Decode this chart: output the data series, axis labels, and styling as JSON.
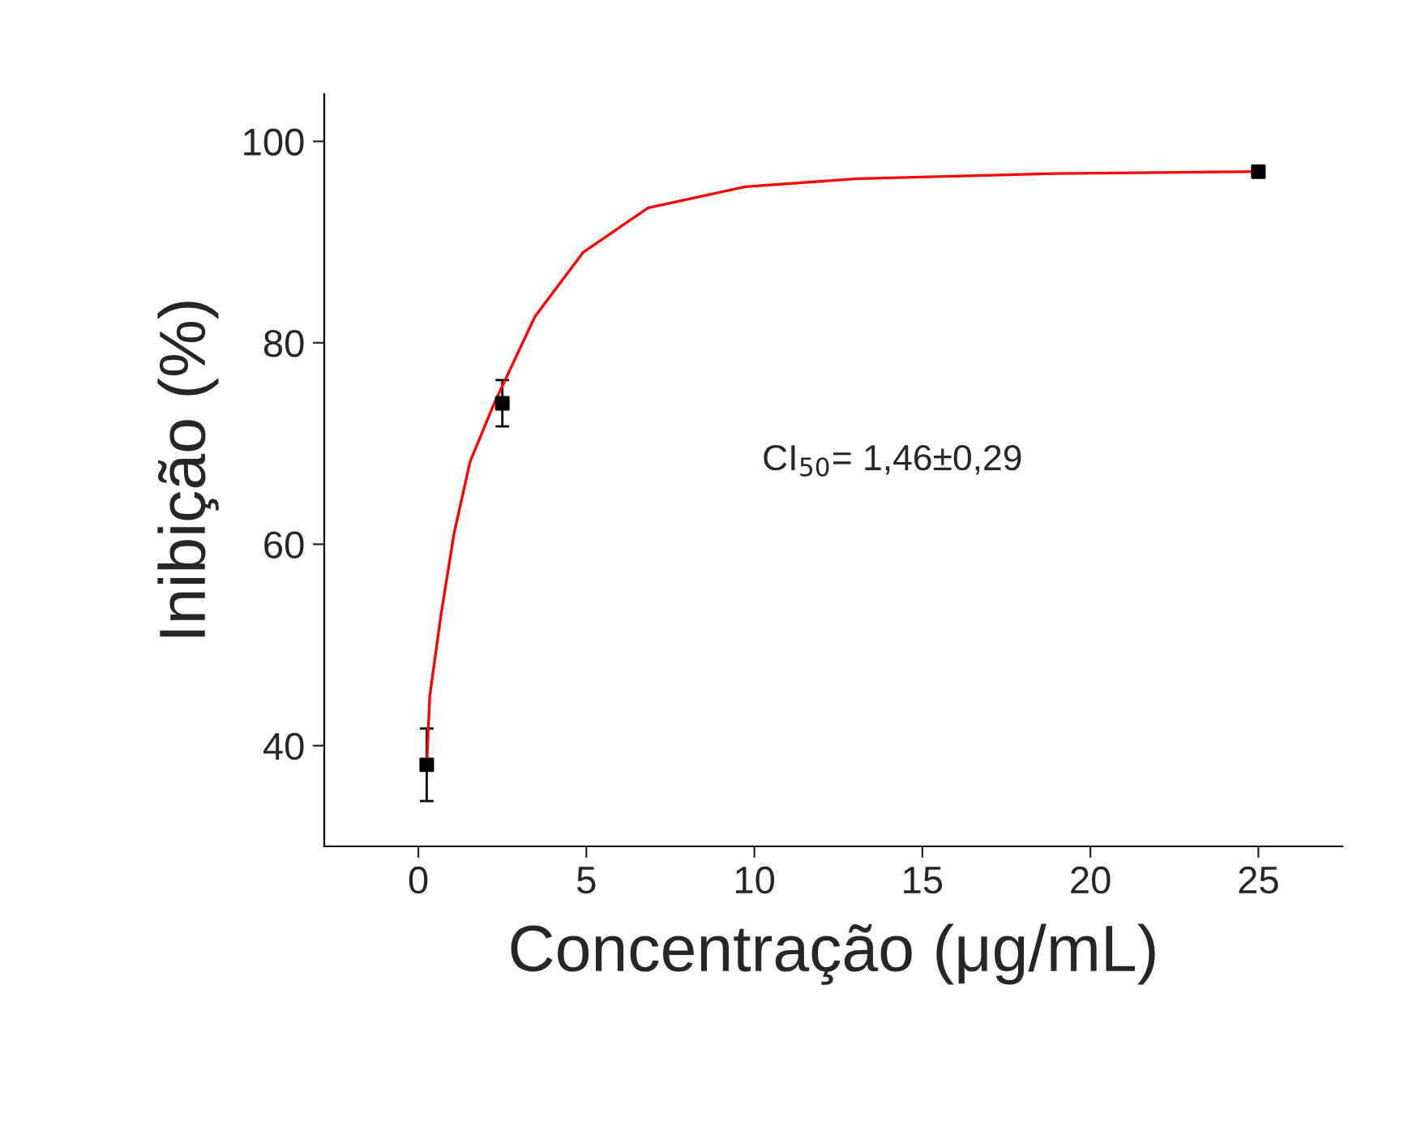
{
  "chart_data": {
    "type": "scatter",
    "xlabel": "Concentração (μg/mL)",
    "ylabel": "Inibição (%)",
    "xlim": [
      -2.8,
      27.5
    ],
    "ylim": [
      30,
      104.7
    ],
    "xticks": [
      0,
      5,
      10,
      15,
      20,
      25
    ],
    "yticks": [
      40,
      60,
      80,
      100
    ],
    "grid": false,
    "legend": false,
    "annotations": [
      "CI$_{50}$= 1,46±0,29"
    ],
    "series": [
      {
        "color": "#000000",
        "marker": "square",
        "x": [
          0.25,
          2.5,
          25
        ],
        "values": [
          38.1,
          74.0,
          97.0
        ],
        "errors": [
          3.6,
          2.3,
          null
        ]
      },
      {
        "type": "line",
        "color": "#ff0000",
        "marker": "none",
        "x": [
          0.25,
          0.34,
          0.67,
          1.06,
          1.54,
          2.26,
          3.47,
          4.91,
          6.84,
          9.73,
          13.1,
          18.9,
          25
        ],
        "values": [
          38.1,
          44.9,
          52.9,
          61.0,
          68.2,
          74.0,
          82.6,
          89.0,
          93.4,
          95.5,
          96.3,
          96.8,
          97.0
        ]
      }
    ]
  }
}
